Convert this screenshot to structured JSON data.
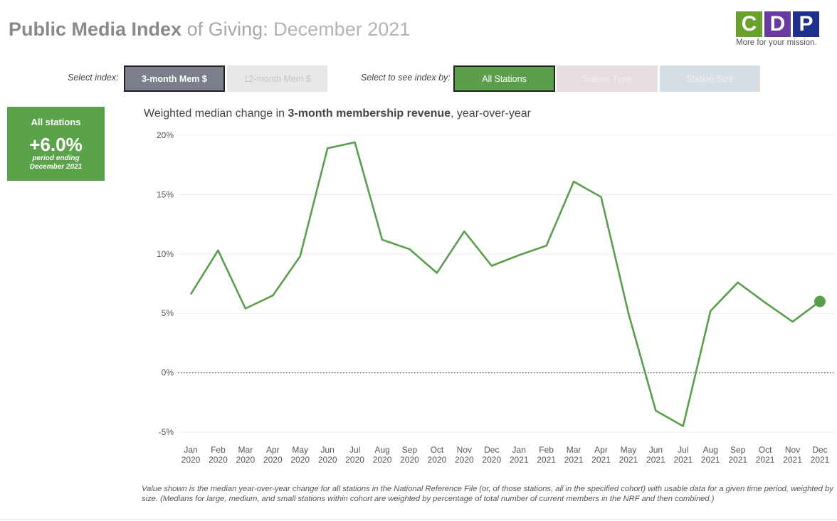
{
  "header": {
    "title_strong": "Public Media Index",
    "title_mid": "of Giving:",
    "title_date": "December 2021"
  },
  "logo": {
    "letters": [
      "C",
      "D",
      "P"
    ],
    "colors": [
      "#6aa12d",
      "#6b3aa0",
      "#1f2f8c"
    ],
    "tagline": "More for your mission."
  },
  "controls": {
    "index_label": "Select index:",
    "index_options": [
      "3-month Mem $",
      "12-month Mem $"
    ],
    "index_selected": "3-month Mem $",
    "view_label": "Select to see index by:",
    "view_options": [
      "All Stations",
      "Station Type",
      "Station Size"
    ],
    "view_selected": "All Stations"
  },
  "stat": {
    "label": "All stations",
    "value": "+6.0%",
    "sub1": "period ending",
    "sub2": "December 2021"
  },
  "chart_title": {
    "prefix": "Weighted median change in ",
    "bold": "3-month membership revenue",
    "suffix": ", year-over-year"
  },
  "footnote": "Value shown is the median year-over-year change for all stations in the National Reference File (or, of those stations, all in the specified cohort) with usable data for a given time period, weighted by size. (Medians for large, medium, and small stations within cohort are weighted by percentage of total number of current members in the NRF and then combined.)",
  "colors": {
    "line": "#5a9e4b",
    "grid": "#ececec",
    "zero_line": "#666666"
  },
  "chart_data": {
    "type": "line",
    "categories": [
      "Jan 2020",
      "Feb 2020",
      "Mar 2020",
      "Apr 2020",
      "May 2020",
      "Jun 2020",
      "Jul 2020",
      "Aug 2020",
      "Sep 2020",
      "Oct 2020",
      "Nov 2020",
      "Dec 2020",
      "Jan 2021",
      "Feb 2021",
      "Mar 2021",
      "Apr 2021",
      "May 2021",
      "Jun 2021",
      "Jul 2021",
      "Aug 2021",
      "Sep 2021",
      "Oct 2021",
      "Nov 2021",
      "Dec 2021"
    ],
    "x_tick_months": [
      "Jan",
      "Feb",
      "Mar",
      "Apr",
      "May",
      "Jun",
      "Jul",
      "Aug",
      "Sep",
      "Oct",
      "Nov",
      "Dec",
      "Jan",
      "Feb",
      "Mar",
      "Apr",
      "May",
      "Jun",
      "Jul",
      "Aug",
      "Sep",
      "Oct",
      "Nov",
      "Dec"
    ],
    "x_tick_years": [
      "2020",
      "2020",
      "2020",
      "2020",
      "2020",
      "2020",
      "2020",
      "2020",
      "2020",
      "2020",
      "2020",
      "2020",
      "2021",
      "2021",
      "2021",
      "2021",
      "2021",
      "2021",
      "2021",
      "2021",
      "2021",
      "2021",
      "2021",
      "2021"
    ],
    "series": [
      {
        "values": [
          6.6,
          10.3,
          5.4,
          6.5,
          9.8,
          18.9,
          19.4,
          11.2,
          10.4,
          8.4,
          11.9,
          9.0,
          9.9,
          10.7,
          16.1,
          14.8,
          5.0,
          -3.2,
          -4.5,
          5.2,
          7.6,
          5.9,
          4.3,
          6.0
        ]
      }
    ],
    "ylim": [
      -5,
      20
    ],
    "y_ticks": [
      20,
      15,
      10,
      5,
      0,
      -5
    ],
    "y_tick_labels": [
      "20%",
      "15%",
      "10%",
      "5%",
      "0%",
      "-5%"
    ],
    "highlight_last_point": true,
    "grid": true
  }
}
